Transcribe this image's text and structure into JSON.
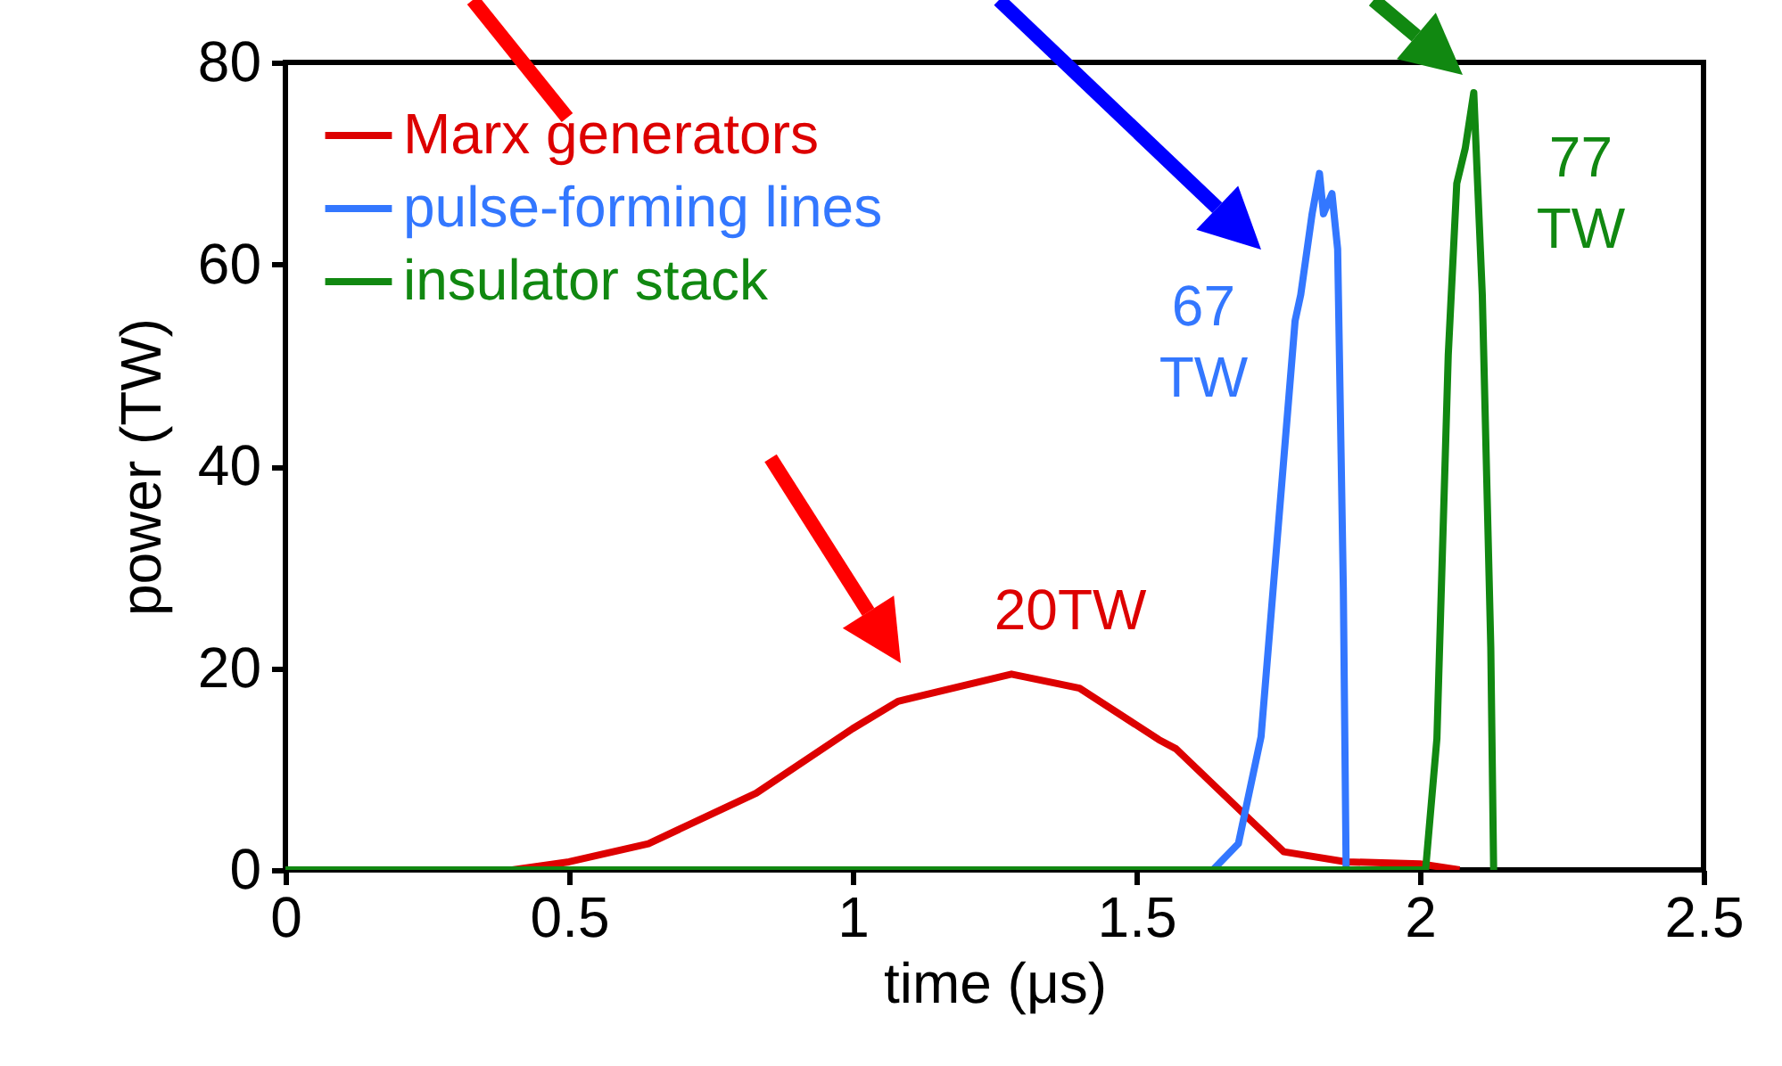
{
  "chart_data": {
    "type": "line",
    "xlabel": "time (μs)",
    "ylabel": "power (TW)",
    "xlim": [
      0,
      2.5
    ],
    "ylim": [
      0,
      80
    ],
    "xticks": [
      0,
      0.5,
      1,
      1.5,
      2,
      2.5
    ],
    "yticks": [
      0,
      20,
      40,
      60,
      80
    ],
    "grid": false,
    "legend": "top left",
    "line_style": "solid",
    "series": [
      {
        "name": "Marx generators",
        "color": "#dd0000",
        "x": [
          0,
          0.4,
          0.5,
          0.64,
          0.83,
          1.0,
          1.08,
          1.28,
          1.4,
          1.54,
          1.57,
          1.7,
          1.76,
          1.87,
          2.0,
          2.07
        ],
        "values": [
          0,
          0,
          0.8,
          2.6,
          7.6,
          14,
          16.7,
          19.4,
          18,
          12.9,
          12,
          5,
          1.8,
          0.8,
          0.6,
          0
        ]
      },
      {
        "name": "pulse-forming lines",
        "color": "#3377ff",
        "x": [
          0,
          1.635,
          1.68,
          1.72,
          1.75,
          1.78,
          1.79,
          1.81,
          1.823,
          1.83,
          1.845,
          1.855,
          1.865,
          1.87
        ],
        "values": [
          0,
          0,
          2.6,
          13.2,
          33.8,
          54.4,
          57,
          65,
          69,
          65,
          67,
          61.5,
          28,
          0
        ]
      },
      {
        "name": "insulator stack",
        "color": "#118811",
        "x": [
          0,
          2.01,
          2.03,
          2.05,
          2.065,
          2.08,
          2.095,
          2.11,
          2.125,
          2.13
        ],
        "values": [
          0,
          0,
          13,
          51,
          68,
          71.5,
          77,
          57,
          22,
          0
        ]
      }
    ],
    "annotations": [
      {
        "text": "20TW",
        "x": 1.28,
        "y": 19.4
      },
      {
        "text": "67 TW",
        "x": 1.823,
        "y": 69
      },
      {
        "text": "77 TW",
        "x": 2.095,
        "y": 77
      }
    ]
  }
}
